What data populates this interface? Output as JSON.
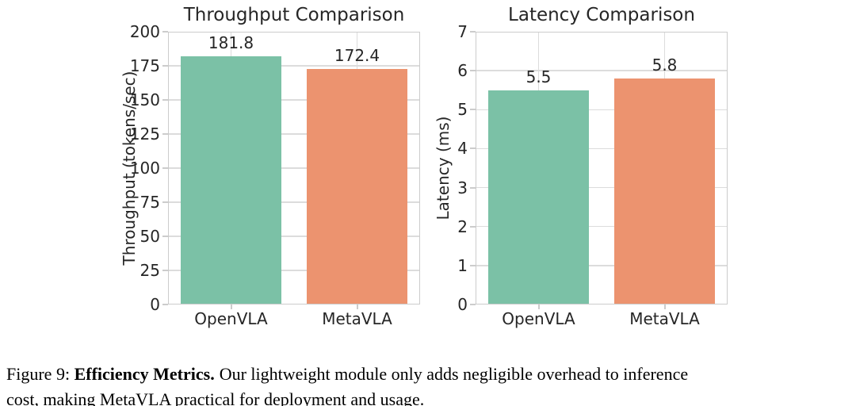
{
  "figure": {
    "caption": {
      "prefix": "Figure 9:",
      "bold": "Efficiency Metrics.",
      "line1": "Our lightweight module only adds negligible overhead to inference",
      "line2": "cost, making MetaVLA practical for deployment and usage."
    }
  },
  "colors": {
    "bar_green": "#7bc1a6",
    "bar_orange": "#ec936f",
    "grid": "#dcdcdc",
    "spine": "#cccccc",
    "axis_text": "#262626",
    "caption_text": "#000000",
    "background": "#ffffff"
  },
  "chart_data": [
    {
      "type": "bar",
      "title": "Throughput Comparison",
      "xlabel": "",
      "ylabel": "Throughput (tokens/sec)",
      "categories": [
        "OpenVLA",
        "MetaVLA"
      ],
      "values": [
        181.8,
        172.4
      ],
      "value_labels": [
        "181.8",
        "172.4"
      ],
      "bar_colors": [
        "#7bc1a6",
        "#ec936f"
      ],
      "ylim": [
        0,
        200
      ],
      "yticks": [
        0,
        25,
        50,
        75,
        100,
        125,
        150,
        175,
        200
      ],
      "grid": true,
      "legend": false
    },
    {
      "type": "bar",
      "title": "Latency Comparison",
      "xlabel": "",
      "ylabel": "Latency (ms)",
      "categories": [
        "OpenVLA",
        "MetaVLA"
      ],
      "values": [
        5.5,
        5.8
      ],
      "value_labels": [
        "5.5",
        "5.8"
      ],
      "bar_colors": [
        "#7bc1a6",
        "#ec936f"
      ],
      "ylim": [
        0,
        7
      ],
      "yticks": [
        0,
        1,
        2,
        3,
        4,
        5,
        6,
        7
      ],
      "grid": true,
      "legend": false
    }
  ]
}
